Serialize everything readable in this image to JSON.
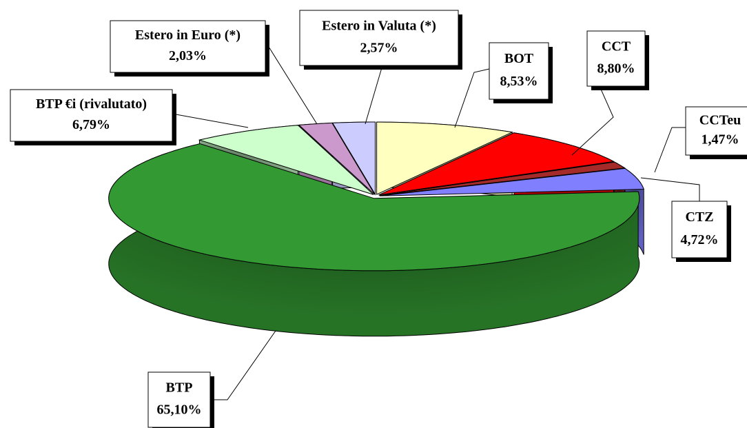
{
  "chart_data": {
    "type": "pie",
    "categories": [
      "BOT",
      "CCT",
      "CCTeu",
      "CTZ",
      "BTP",
      "BTP €i  (rivalutato)",
      "Estero in Euro (*)",
      "Estero in Valuta (*)"
    ],
    "values": [
      8.53,
      8.8,
      1.47,
      4.72,
      65.1,
      6.79,
      2.03,
      2.57
    ],
    "value_labels": [
      "8,53%",
      "8,80%",
      "1,47%",
      "4,72%",
      "65,10%",
      "6,79%",
      "2,03%",
      "2,57%"
    ],
    "colors": [
      "#ffffc0",
      "#ff0000",
      "#a52a2a",
      "#8080ff",
      "#339933",
      "#ccffcc",
      "#cc99cc",
      "#ccccff"
    ]
  }
}
